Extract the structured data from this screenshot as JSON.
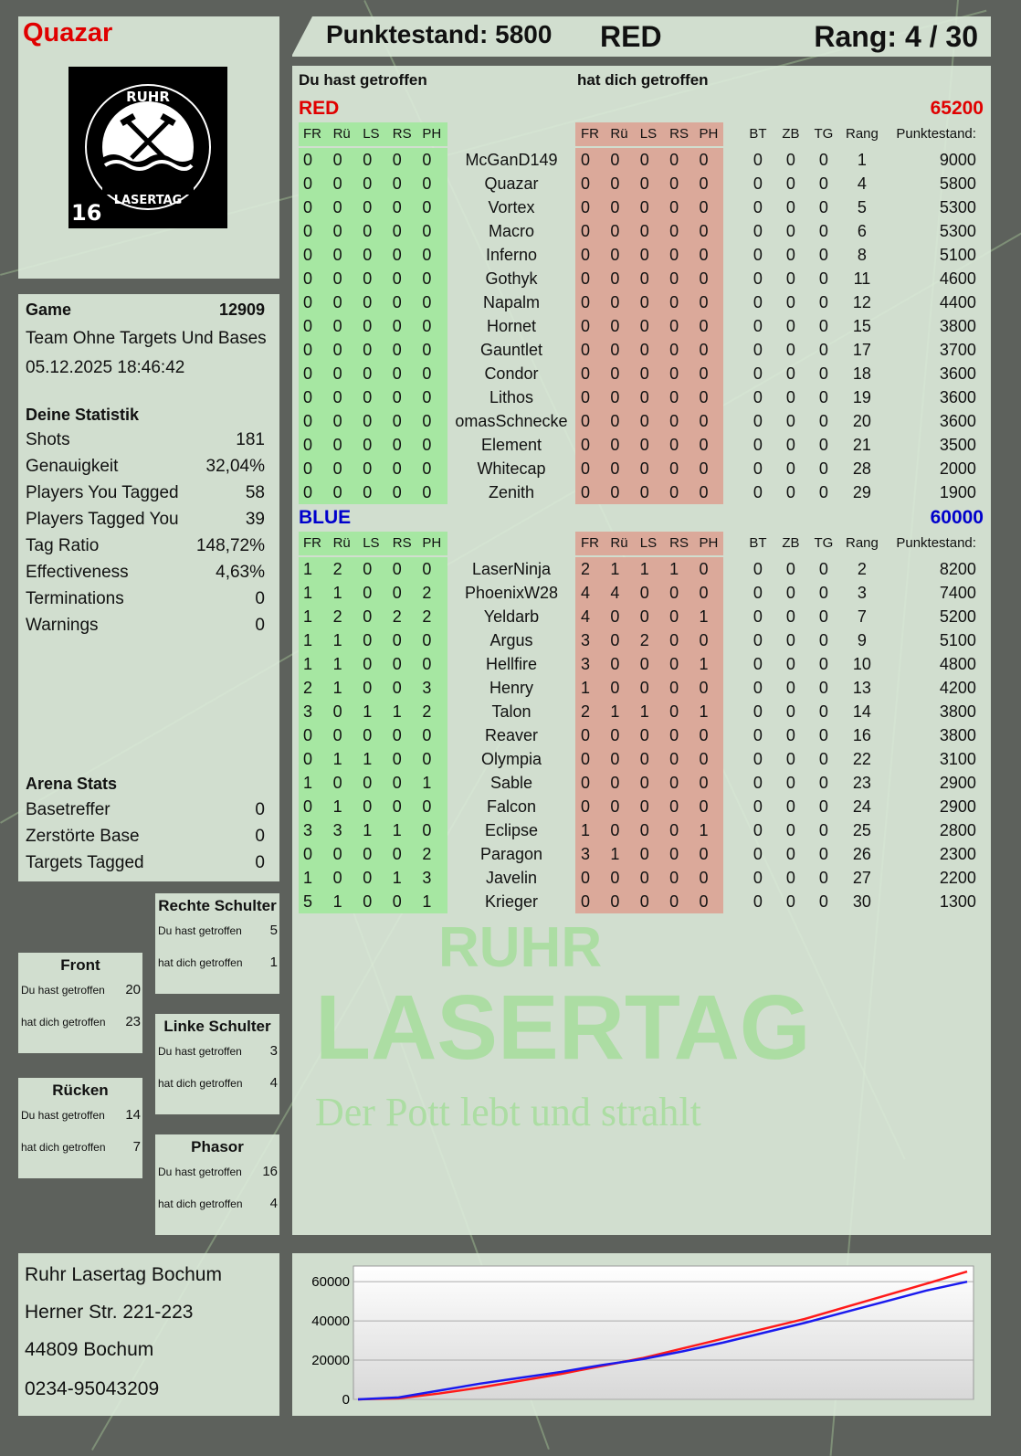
{
  "player": {
    "name": "Quazar",
    "score_label": "Punktestand: 5800",
    "team": "RED",
    "rank_label": "Rang: 4 / 30",
    "logo_text": "RUHR LASERTAG",
    "logo_badge": "16"
  },
  "colors": {
    "red": "#e00000",
    "blue": "#0000cc",
    "hit_green": "#a6e7a2",
    "hit_red": "#dba99a",
    "chart_red": "#ff1a1a",
    "chart_blue": "#1a1aee"
  },
  "game": {
    "label": "Game",
    "number": "12909",
    "mode": "Team Ohne Targets Und Bases",
    "datetime": "05.12.2025 18:46:42"
  },
  "stats": {
    "title": "Deine Statistik",
    "rows": [
      {
        "label": "Shots",
        "value": "181"
      },
      {
        "label": "Genauigkeit",
        "value": "32,04%"
      },
      {
        "label": "Players You Tagged",
        "value": "58"
      },
      {
        "label": "Players Tagged You",
        "value": "39"
      },
      {
        "label": "Tag Ratio",
        "value": "148,72%"
      },
      {
        "label": "Effectiveness",
        "value": "4,63%"
      },
      {
        "label": "Terminations",
        "value": "0"
      },
      {
        "label": "Warnings",
        "value": "0"
      }
    ]
  },
  "arena": {
    "title": "Arena Stats",
    "rows": [
      {
        "label": "Basetreffer",
        "value": "0"
      },
      {
        "label": "Zerstörte Base",
        "value": "0"
      },
      {
        "label": "Targets Tagged",
        "value": "0"
      }
    ]
  },
  "zones": [
    {
      "title": "Rechte Schulter",
      "hit_label": "Du hast getroffen",
      "hit": "5",
      "got_label": "hat dich getroffen",
      "got": "1"
    },
    {
      "title": "Front",
      "hit_label": "Du hast getroffen",
      "hit": "20",
      "got_label": "hat dich getroffen",
      "got": "23"
    },
    {
      "title": "Linke Schulter",
      "hit_label": "Du hast getroffen",
      "hit": "3",
      "got_label": "hat dich getroffen",
      "got": "4"
    },
    {
      "title": "Rücken",
      "hit_label": "Du hast getroffen",
      "hit": "14",
      "got_label": "hat dich getroffen",
      "got": "7"
    },
    {
      "title": "Phasor",
      "hit_label": "Du hast getroffen",
      "hit": "16",
      "got_label": "hat dich getroffen",
      "got": "4"
    }
  ],
  "address": [
    "Ruhr Lasertag Bochum",
    "Herner Str. 221-223",
    "44809 Bochum",
    "0234-95043209"
  ],
  "table": {
    "you_hit_label": "Du hast getroffen",
    "hit_you_label": "hat dich getroffen",
    "columns": [
      "FR",
      "Rü",
      "LS",
      "RS",
      "PH",
      "",
      "FR",
      "Rü",
      "LS",
      "RS",
      "PH",
      "",
      "BT",
      "ZB",
      "TG",
      "Rang",
      "Punktestand:"
    ],
    "teams": [
      {
        "name": "RED",
        "total": "65200",
        "color": "#e00000",
        "rows": [
          [
            "0",
            "0",
            "0",
            "0",
            "0",
            "McGanD149",
            "0",
            "0",
            "0",
            "0",
            "0",
            "0",
            "0",
            "0",
            "1",
            "9000"
          ],
          [
            "0",
            "0",
            "0",
            "0",
            "0",
            "Quazar",
            "0",
            "0",
            "0",
            "0",
            "0",
            "0",
            "0",
            "0",
            "4",
            "5800"
          ],
          [
            "0",
            "0",
            "0",
            "0",
            "0",
            "Vortex",
            "0",
            "0",
            "0",
            "0",
            "0",
            "0",
            "0",
            "0",
            "5",
            "5300"
          ],
          [
            "0",
            "0",
            "0",
            "0",
            "0",
            "Macro",
            "0",
            "0",
            "0",
            "0",
            "0",
            "0",
            "0",
            "0",
            "6",
            "5300"
          ],
          [
            "0",
            "0",
            "0",
            "0",
            "0",
            "Inferno",
            "0",
            "0",
            "0",
            "0",
            "0",
            "0",
            "0",
            "0",
            "8",
            "5100"
          ],
          [
            "0",
            "0",
            "0",
            "0",
            "0",
            "Gothyk",
            "0",
            "0",
            "0",
            "0",
            "0",
            "0",
            "0",
            "0",
            "11",
            "4600"
          ],
          [
            "0",
            "0",
            "0",
            "0",
            "0",
            "Napalm",
            "0",
            "0",
            "0",
            "0",
            "0",
            "0",
            "0",
            "0",
            "12",
            "4400"
          ],
          [
            "0",
            "0",
            "0",
            "0",
            "0",
            "Hornet",
            "0",
            "0",
            "0",
            "0",
            "0",
            "0",
            "0",
            "0",
            "15",
            "3800"
          ],
          [
            "0",
            "0",
            "0",
            "0",
            "0",
            "Gauntlet",
            "0",
            "0",
            "0",
            "0",
            "0",
            "0",
            "0",
            "0",
            "17",
            "3700"
          ],
          [
            "0",
            "0",
            "0",
            "0",
            "0",
            "Condor",
            "0",
            "0",
            "0",
            "0",
            "0",
            "0",
            "0",
            "0",
            "18",
            "3600"
          ],
          [
            "0",
            "0",
            "0",
            "0",
            "0",
            "Lithos",
            "0",
            "0",
            "0",
            "0",
            "0",
            "0",
            "0",
            "0",
            "19",
            "3600"
          ],
          [
            "0",
            "0",
            "0",
            "0",
            "0",
            "omasSchnecke",
            "0",
            "0",
            "0",
            "0",
            "0",
            "0",
            "0",
            "0",
            "20",
            "3600"
          ],
          [
            "0",
            "0",
            "0",
            "0",
            "0",
            "Element",
            "0",
            "0",
            "0",
            "0",
            "0",
            "0",
            "0",
            "0",
            "21",
            "3500"
          ],
          [
            "0",
            "0",
            "0",
            "0",
            "0",
            "Whitecap",
            "0",
            "0",
            "0",
            "0",
            "0",
            "0",
            "0",
            "0",
            "28",
            "2000"
          ],
          [
            "0",
            "0",
            "0",
            "0",
            "0",
            "Zenith",
            "0",
            "0",
            "0",
            "0",
            "0",
            "0",
            "0",
            "0",
            "29",
            "1900"
          ]
        ]
      },
      {
        "name": "BLUE",
        "total": "60000",
        "color": "#0000cc",
        "rows": [
          [
            "1",
            "2",
            "0",
            "0",
            "0",
            "LaserNinja",
            "2",
            "1",
            "1",
            "1",
            "0",
            "0",
            "0",
            "0",
            "2",
            "8200"
          ],
          [
            "1",
            "1",
            "0",
            "0",
            "2",
            "PhoenixW28",
            "4",
            "4",
            "0",
            "0",
            "0",
            "0",
            "0",
            "0",
            "3",
            "7400"
          ],
          [
            "1",
            "2",
            "0",
            "2",
            "2",
            "Yeldarb",
            "4",
            "0",
            "0",
            "0",
            "1",
            "0",
            "0",
            "0",
            "7",
            "5200"
          ],
          [
            "1",
            "1",
            "0",
            "0",
            "0",
            "Argus",
            "3",
            "0",
            "2",
            "0",
            "0",
            "0",
            "0",
            "0",
            "9",
            "5100"
          ],
          [
            "1",
            "1",
            "0",
            "0",
            "0",
            "Hellfire",
            "3",
            "0",
            "0",
            "0",
            "1",
            "0",
            "0",
            "0",
            "10",
            "4800"
          ],
          [
            "2",
            "1",
            "0",
            "0",
            "3",
            "Henry",
            "1",
            "0",
            "0",
            "0",
            "0",
            "0",
            "0",
            "0",
            "13",
            "4200"
          ],
          [
            "3",
            "0",
            "1",
            "1",
            "2",
            "Talon",
            "2",
            "1",
            "1",
            "0",
            "1",
            "0",
            "0",
            "0",
            "14",
            "3800"
          ],
          [
            "0",
            "0",
            "0",
            "0",
            "0",
            "Reaver",
            "0",
            "0",
            "0",
            "0",
            "0",
            "0",
            "0",
            "0",
            "16",
            "3800"
          ],
          [
            "0",
            "1",
            "1",
            "0",
            "0",
            "Olympia",
            "0",
            "0",
            "0",
            "0",
            "0",
            "0",
            "0",
            "0",
            "22",
            "3100"
          ],
          [
            "1",
            "0",
            "0",
            "0",
            "1",
            "Sable",
            "0",
            "0",
            "0",
            "0",
            "0",
            "0",
            "0",
            "0",
            "23",
            "2900"
          ],
          [
            "0",
            "1",
            "0",
            "0",
            "0",
            "Falcon",
            "0",
            "0",
            "0",
            "0",
            "0",
            "0",
            "0",
            "0",
            "24",
            "2900"
          ],
          [
            "3",
            "3",
            "1",
            "1",
            "0",
            "Eclipse",
            "1",
            "0",
            "0",
            "0",
            "1",
            "0",
            "0",
            "0",
            "25",
            "2800"
          ],
          [
            "0",
            "0",
            "0",
            "0",
            "2",
            "Paragon",
            "3",
            "1",
            "0",
            "0",
            "0",
            "0",
            "0",
            "0",
            "26",
            "2300"
          ],
          [
            "1",
            "0",
            "0",
            "1",
            "3",
            "Javelin",
            "0",
            "0",
            "0",
            "0",
            "0",
            "0",
            "0",
            "0",
            "27",
            "2200"
          ],
          [
            "5",
            "1",
            "0",
            "0",
            "1",
            "Krieger",
            "0",
            "0",
            "0",
            "0",
            "0",
            "0",
            "0",
            "0",
            "30",
            "1300"
          ]
        ]
      }
    ]
  },
  "watermark": {
    "line1": "RUHR",
    "line2": "LASERTAG",
    "line3": "Der Pott lebt und strahlt"
  },
  "chart_data": {
    "type": "line",
    "title": "",
    "xlabel": "",
    "ylabel": "",
    "ylim": [
      0,
      68000
    ],
    "yticks": [
      "0",
      "20000",
      "40000",
      "60000"
    ],
    "grid": true,
    "x": [
      0,
      1,
      2,
      3,
      4,
      5,
      6,
      7,
      8,
      9,
      10,
      11,
      12,
      13,
      14,
      15
    ],
    "series": [
      {
        "color": "#ff1a1a",
        "values": [
          0,
          500,
          3000,
          6000,
          9500,
          13000,
          17000,
          21000,
          26000,
          31000,
          36000,
          41000,
          47000,
          53000,
          59000,
          65200
        ]
      },
      {
        "color": "#1a1aee",
        "values": [
          0,
          1000,
          4500,
          8000,
          11000,
          14000,
          17500,
          20500,
          24500,
          29000,
          34000,
          39000,
          44500,
          50000,
          55500,
          60000
        ]
      }
    ]
  }
}
